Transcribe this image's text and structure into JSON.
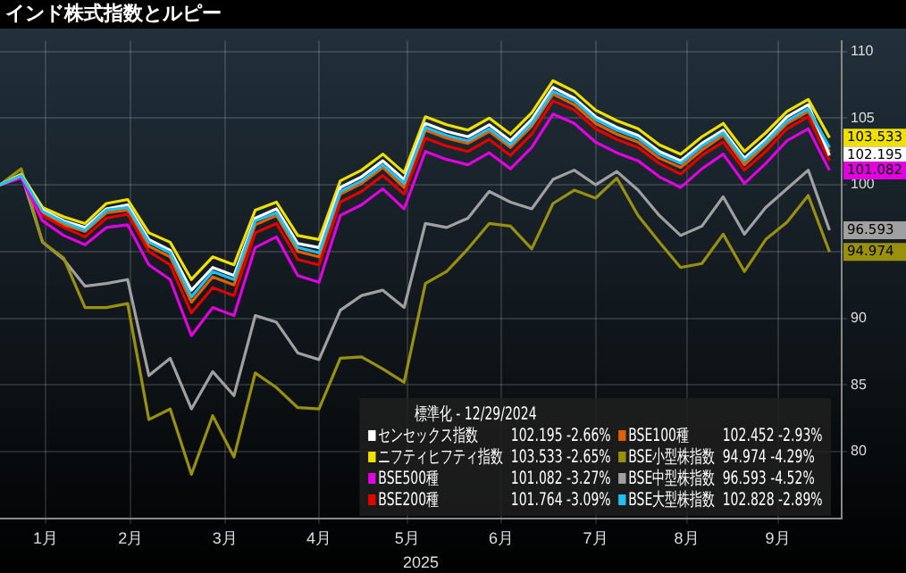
{
  "chart_data": {
    "type": "line",
    "title": "インド株式指数とルピー",
    "legend_title": "標準化 - 12/29/2024",
    "xlabel": "2025",
    "x": [
      "2024-12-29",
      "2025-01-05",
      "2025-01-12",
      "2025-01-19",
      "2025-01-26",
      "2025-02-02",
      "2025-02-09",
      "2025-02-16",
      "2025-02-23",
      "2025-03-02",
      "2025-03-09",
      "2025-03-16",
      "2025-03-23",
      "2025-03-30",
      "2025-04-06",
      "2025-04-13",
      "2025-04-20",
      "2025-04-27",
      "2025-05-04",
      "2025-05-11",
      "2025-05-18",
      "2025-05-25",
      "2025-06-01",
      "2025-06-08",
      "2025-06-15",
      "2025-06-22",
      "2025-06-29",
      "2025-07-06",
      "2025-07-13",
      "2025-07-20",
      "2025-07-27",
      "2025-08-03",
      "2025-08-10",
      "2025-08-17",
      "2025-08-24",
      "2025-08-31",
      "2025-09-07",
      "2025-09-14",
      "2025-09-21",
      "2025-09-28"
    ],
    "series": [
      {
        "name": "センセックス指数",
        "color": "#ffffff",
        "values": [
          100,
          100.7,
          98.1,
          97.3,
          96.8,
          98.2,
          98.5,
          95.9,
          95.1,
          92.1,
          93.8,
          93.2,
          97.5,
          98.2,
          95.6,
          95.3,
          99.8,
          100.6,
          101.8,
          100.4,
          104.6,
          104.0,
          103.6,
          104.5,
          103.3,
          104.9,
          107.3,
          106.5,
          105.1,
          104.3,
          103.7,
          102.5,
          101.8,
          103.1,
          104.1,
          102.0,
          103.4,
          105.1,
          106.0,
          102.195
        ],
        "value_labels": [
          null,
          null,
          null,
          null,
          null,
          null,
          null,
          null,
          null,
          null,
          null,
          null,
          null,
          null,
          null,
          null,
          null,
          null,
          null,
          null,
          null,
          null,
          null,
          null,
          null,
          null,
          null,
          null,
          null,
          null,
          null,
          null,
          null,
          null,
          null,
          null,
          null,
          null,
          null,
          "102.195"
        ]
      },
      {
        "name": "ニフティヒフティ指数",
        "color": "#f0e000",
        "values": [
          100,
          100.8,
          98.3,
          97.6,
          97.1,
          98.6,
          98.9,
          96.4,
          95.7,
          92.9,
          94.6,
          94.0,
          98.1,
          98.7,
          96.2,
          95.9,
          100.3,
          101.1,
          102.3,
          100.9,
          105.1,
          104.5,
          104.1,
          105.0,
          103.8,
          105.4,
          107.8,
          107.0,
          105.6,
          104.8,
          104.2,
          103.0,
          102.3,
          103.6,
          104.6,
          102.5,
          103.9,
          105.5,
          106.4,
          103.533
        ],
        "value_labels": [
          null,
          null,
          null,
          null,
          null,
          null,
          null,
          null,
          null,
          null,
          null,
          null,
          null,
          null,
          null,
          null,
          null,
          null,
          null,
          null,
          null,
          null,
          null,
          null,
          null,
          null,
          null,
          null,
          null,
          null,
          null,
          null,
          null,
          null,
          null,
          null,
          null,
          null,
          null,
          "103.533"
        ]
      },
      {
        "name": "BSE500種",
        "color": "#e000e0",
        "values": [
          100,
          100.5,
          97.3,
          96.2,
          95.5,
          96.8,
          97.0,
          94.0,
          92.9,
          88.7,
          90.8,
          90.2,
          95.3,
          96.1,
          93.2,
          92.7,
          97.7,
          98.5,
          99.7,
          98.2,
          102.5,
          101.9,
          101.5,
          102.4,
          101.2,
          102.8,
          105.3,
          104.6,
          103.2,
          102.4,
          101.8,
          100.6,
          99.8,
          101.2,
          102.3,
          100.1,
          101.6,
          103.3,
          104.2,
          101.082
        ],
        "value_labels": [
          null,
          null,
          null,
          null,
          null,
          null,
          null,
          null,
          null,
          null,
          null,
          null,
          null,
          null,
          null,
          null,
          null,
          null,
          null,
          null,
          null,
          null,
          null,
          null,
          null,
          null,
          null,
          null,
          null,
          null,
          null,
          null,
          null,
          null,
          null,
          null,
          null,
          null,
          null,
          "101.082"
        ]
      },
      {
        "name": "BSE200種",
        "color": "#e00000",
        "values": [
          100,
          100.6,
          97.7,
          96.8,
          96.1,
          97.5,
          97.8,
          95.0,
          94.0,
          90.4,
          92.3,
          91.7,
          96.4,
          97.1,
          94.4,
          94.0,
          98.7,
          99.5,
          100.7,
          99.3,
          103.5,
          102.9,
          102.5,
          103.4,
          102.2,
          103.8,
          106.3,
          105.6,
          104.2,
          103.4,
          102.8,
          101.6,
          100.8,
          102.2,
          103.2,
          101.1,
          102.5,
          104.2,
          105.1,
          101.8
        ]
      },
      {
        "name": "BSE100種",
        "color": "#e06000",
        "values": [
          100,
          100.7,
          97.9,
          97.0,
          96.5,
          97.9,
          98.1,
          95.4,
          94.6,
          91.2,
          93.1,
          92.5,
          97.0,
          97.7,
          95.0,
          94.6,
          99.3,
          100.1,
          101.3,
          99.8,
          104.1,
          103.5,
          103.1,
          104.0,
          102.8,
          104.4,
          106.8,
          106.0,
          104.6,
          103.8,
          103.2,
          102.0,
          101.3,
          102.6,
          103.7,
          101.5,
          103.0,
          104.6,
          105.5,
          102.5
        ]
      },
      {
        "name": "BSE小型株指数",
        "color": "#9a9010",
        "values": [
          100,
          101.2,
          95.7,
          94.5,
          90.8,
          90.8,
          91.1,
          82.4,
          83.2,
          78.3,
          82.7,
          79.6,
          85.9,
          84.8,
          83.3,
          83.2,
          87.0,
          87.1,
          86.2,
          85.2,
          92.6,
          93.5,
          95.2,
          97.1,
          96.9,
          95.2,
          98.6,
          99.6,
          99.0,
          100.5,
          97.7,
          95.7,
          93.8,
          94.1,
          96.3,
          93.5,
          95.9,
          97.2,
          99.2,
          94.974
        ],
        "value_labels": [
          null,
          null,
          null,
          null,
          null,
          null,
          null,
          null,
          null,
          null,
          null,
          null,
          null,
          null,
          null,
          null,
          null,
          null,
          null,
          null,
          null,
          null,
          null,
          null,
          null,
          null,
          null,
          null,
          null,
          null,
          null,
          null,
          null,
          null,
          null,
          null,
          null,
          null,
          null,
          "94.974"
        ]
      },
      {
        "name": "BSE中型株指数",
        "color": "#a0a0a0",
        "values": [
          100,
          100.8,
          95.7,
          94.4,
          92.4,
          92.6,
          92.9,
          85.7,
          87.0,
          83.2,
          86.0,
          84.2,
          90.2,
          89.7,
          87.4,
          86.9,
          90.6,
          91.7,
          92.1,
          90.8,
          97.1,
          96.8,
          97.5,
          99.5,
          98.7,
          98.2,
          100.4,
          101.1,
          100.0,
          101.0,
          99.6,
          97.7,
          96.2,
          96.9,
          99.1,
          96.3,
          98.3,
          99.7,
          101.1,
          96.593
        ],
        "value_labels": [
          null,
          null,
          null,
          null,
          null,
          null,
          null,
          null,
          null,
          null,
          null,
          null,
          null,
          null,
          null,
          null,
          null,
          null,
          null,
          null,
          null,
          null,
          null,
          null,
          null,
          null,
          null,
          null,
          null,
          null,
          null,
          null,
          null,
          null,
          null,
          null,
          null,
          null,
          null,
          "96.593"
        ]
      },
      {
        "name": "BSE大型株指数",
        "color": "#20c0f0",
        "values": [
          100,
          100.7,
          98.0,
          97.2,
          96.6,
          98.1,
          98.3,
          95.7,
          94.9,
          91.6,
          93.5,
          92.9,
          97.3,
          97.9,
          95.3,
          94.9,
          99.5,
          100.3,
          101.5,
          100.1,
          104.3,
          103.7,
          103.3,
          104.2,
          103.0,
          104.6,
          107.0,
          106.3,
          104.9,
          104.1,
          103.5,
          102.3,
          101.6,
          102.9,
          103.9,
          101.8,
          103.2,
          104.8,
          105.7,
          102.8
        ]
      }
    ],
    "annotations": [
      "102.195 -2.66%",
      "103.533 -2.65%",
      "101.082 -3.27%",
      "101.764 -3.09%",
      "102.452 -2.93%",
      "94.974 -4.29%",
      "96.593 -4.52%",
      "102.828 -2.89%"
    ],
    "xlim": [
      "2024-12-29",
      "2025-10-02"
    ],
    "xticks": [
      {
        "value": "2025-01-13",
        "label": "1月"
      },
      {
        "value": "2025-02-10",
        "label": "2月"
      },
      {
        "value": "2025-03-13",
        "label": "3月"
      },
      {
        "value": "2025-04-13",
        "label": "4月"
      },
      {
        "value": "2025-05-12",
        "label": "5月"
      },
      {
        "value": "2025-06-12",
        "label": "6月"
      },
      {
        "value": "2025-07-13",
        "label": "7月"
      },
      {
        "value": "2025-08-12",
        "label": "8月"
      },
      {
        "value": "2025-09-11",
        "label": "9月"
      }
    ],
    "ylim": [
      75,
      110.8
    ],
    "yticks": [
      80,
      85,
      90,
      {
        "value": 95,
        "label": null
      },
      100,
      105,
      110
    ],
    "grid": true,
    "legend": "bottom right"
  }
}
